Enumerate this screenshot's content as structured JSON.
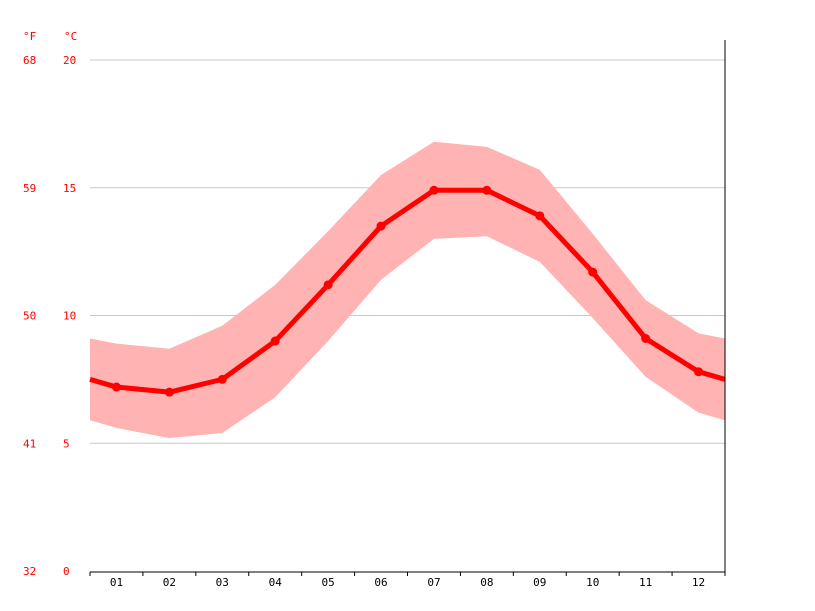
{
  "chart_data": {
    "type": "line",
    "title": "",
    "xlabel": "",
    "ylabel": "",
    "unit_labels": {
      "fahrenheit": "°F",
      "celsius": "°C"
    },
    "categories": [
      "01",
      "02",
      "03",
      "04",
      "05",
      "06",
      "07",
      "08",
      "09",
      "10",
      "11",
      "12"
    ],
    "ylim": [
      0,
      20
    ],
    "y_ticks_c": [
      "0",
      "5",
      "10",
      "15",
      "20"
    ],
    "y_ticks_f": [
      "32",
      "41",
      "50",
      "59",
      "68"
    ],
    "grid": true,
    "series": [
      {
        "values": [
          7.2,
          7.0,
          7.5,
          9.0,
          11.2,
          13.5,
          14.9,
          14.9,
          13.9,
          11.7,
          9.1,
          7.8
        ],
        "color": "#ff0000"
      }
    ],
    "band": {
      "upper": [
        8.9,
        8.7,
        9.6,
        11.2,
        13.3,
        15.5,
        16.8,
        16.6,
        15.7,
        13.2,
        10.6,
        9.3
      ],
      "lower": [
        5.6,
        5.2,
        5.4,
        6.8,
        9.0,
        11.4,
        13.0,
        13.1,
        12.1,
        9.9,
        7.6,
        6.2
      ],
      "color": "#ffb3b3"
    }
  }
}
